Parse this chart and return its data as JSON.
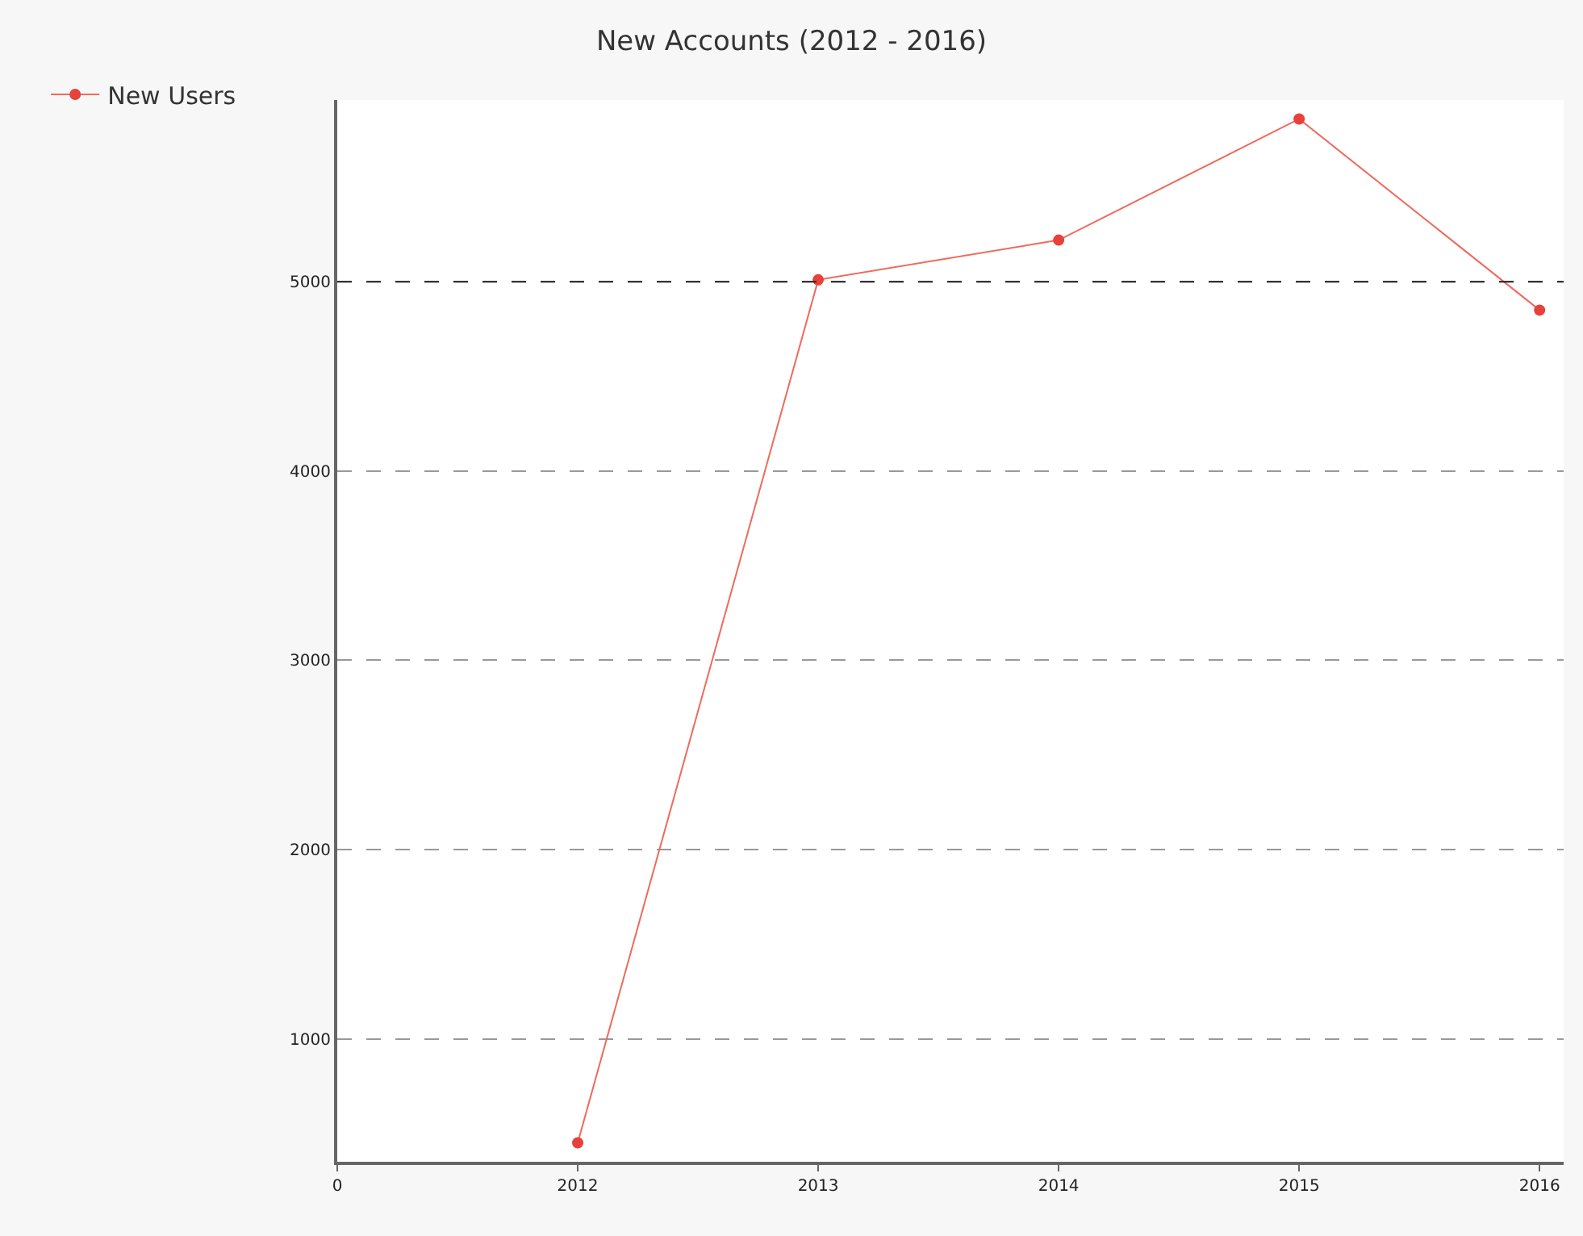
{
  "chart_data": {
    "type": "line",
    "title": "New Accounts (2012 - 2016)",
    "categories": [
      "0",
      "2012",
      "2013",
      "2014",
      "2015",
      "2016"
    ],
    "series": [
      {
        "name": "New Users",
        "color": "#ee6a5e",
        "values": [
          null,
          450,
          5010,
          5220,
          5860,
          4850
        ]
      }
    ],
    "ylim": [
      350,
      5960
    ],
    "yticks": [
      1000,
      2000,
      3000,
      4000,
      5000
    ],
    "grid": "y",
    "legend": "top left",
    "marker": "circle",
    "line_style": "solid",
    "ref_lines": [
      {
        "axis": "y",
        "value": 5000,
        "color": "#222222",
        "line_style": "dashed"
      }
    ]
  }
}
